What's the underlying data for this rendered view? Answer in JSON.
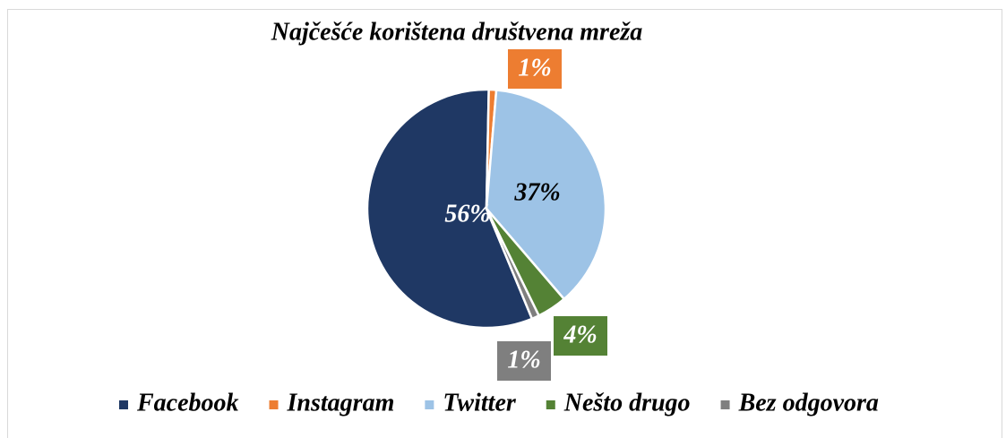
{
  "chart_data": {
    "type": "pie",
    "title": "Najčešće korištena društvena mreža",
    "categories": [
      "Facebook",
      "Instagram",
      "Twitter",
      "Nešto drugo",
      "Bez odgovora"
    ],
    "values": [
      56,
      1,
      37,
      4,
      1
    ],
    "value_labels": [
      "56%",
      "1%",
      "37%",
      "4%",
      "1%"
    ],
    "colors": [
      "#1f3864",
      "#ed7d31",
      "#9dc3e6",
      "#548235",
      "#7f7f7f"
    ],
    "legend": "bottom"
  }
}
